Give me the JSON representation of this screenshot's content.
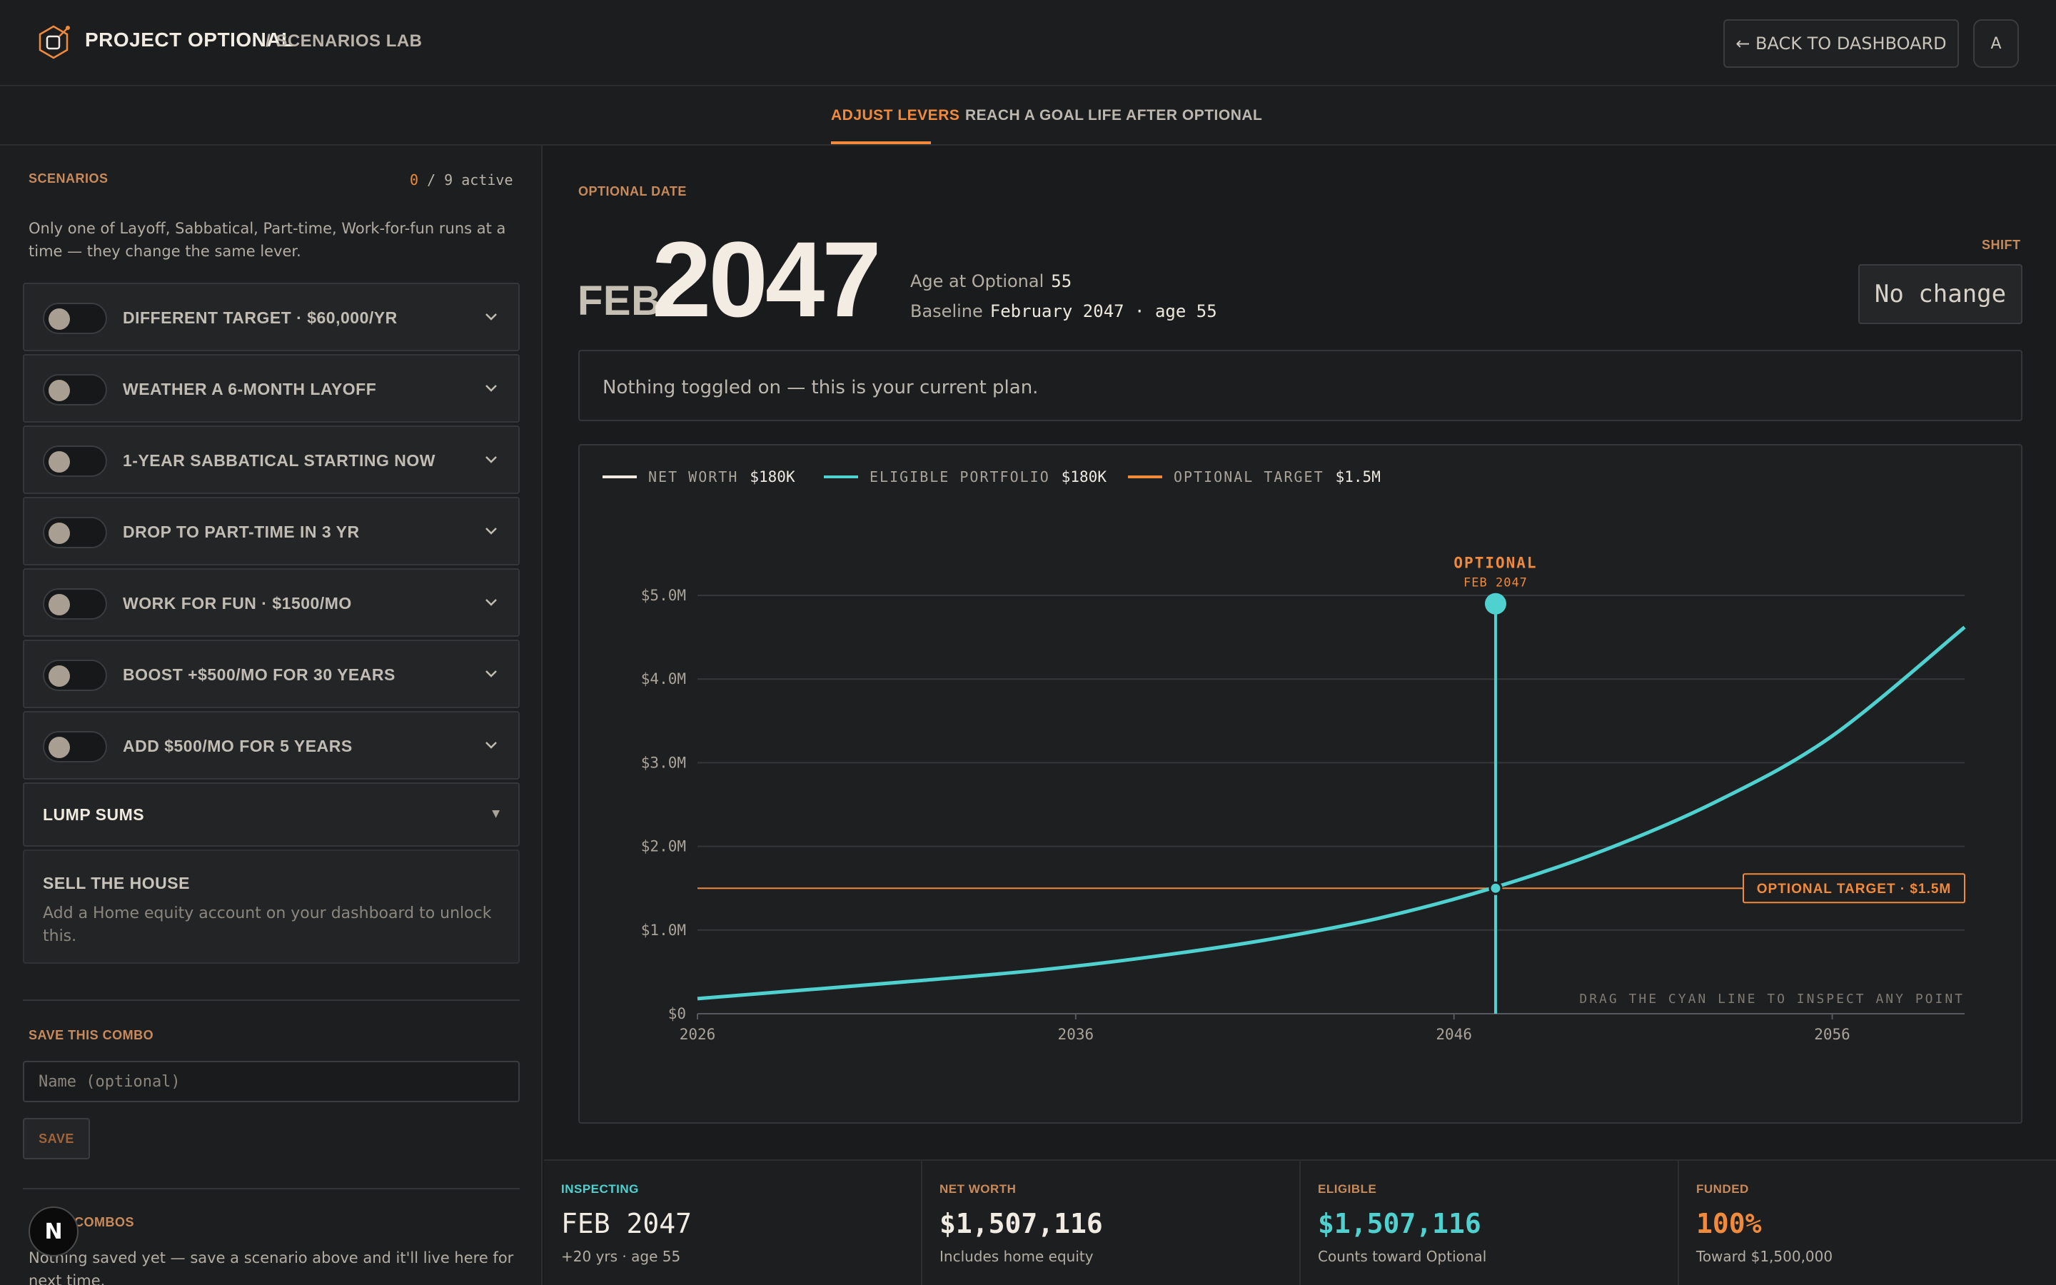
{
  "header": {
    "brand": "PROJECT OPTIONAL",
    "section": "/ SCENARIOS LAB",
    "back_button": "← BACK TO DASHBOARD",
    "avatar_initial": "A"
  },
  "tabs": [
    {
      "label": "ADJUST LEVERS",
      "active": true
    },
    {
      "label": "REACH A GOAL",
      "active": false
    },
    {
      "label": "LIFE AFTER OPTIONAL",
      "active": false
    }
  ],
  "sidebar": {
    "scenarios_label": "SCENARIOS",
    "active_num": "0",
    "active_rest": " / 9 active",
    "note": "Only one of Layoff, Sabbatical, Part-time, Work-for-fun runs at a time — they change the same lever.",
    "items": [
      {
        "label": "DIFFERENT TARGET · $60,000/YR",
        "on": false
      },
      {
        "label": "WEATHER A 6-MONTH LAYOFF",
        "on": false
      },
      {
        "label": "1-YEAR SABBATICAL STARTING NOW",
        "on": false
      },
      {
        "label": "DROP TO PART-TIME IN 3 YR",
        "on": false
      },
      {
        "label": "WORK FOR FUN · $1500/MO",
        "on": false
      },
      {
        "label": "BOOST +$500/MO FOR 30 YEARS",
        "on": false
      },
      {
        "label": "ADD $500/MO FOR 5 YEARS",
        "on": false
      }
    ],
    "lump_sums": "LUMP SUMS",
    "house_title": "SELL THE HOUSE",
    "house_note": "Add a Home equity account on your dashboard to unlock this.",
    "save_label": "SAVE THIS COMBO",
    "name_placeholder": "Name (optional)",
    "save_button": "SAVE",
    "combos_label": "COMBOS",
    "combos_note": "Nothing saved yet — save a scenario above and it'll live here for next time.",
    "badge": "N"
  },
  "main": {
    "optional_date_label": "OPTIONAL DATE",
    "month": "FEB",
    "year": "2047",
    "age_label": "Age at Optional",
    "age_value": "55",
    "baseline_label": "Baseline",
    "baseline_value": "February 2047 · age 55",
    "shift_label": "SHIFT",
    "shift_value": "No change",
    "current_plan": "Nothing toggled on — this is your current plan."
  },
  "legend": [
    {
      "label": "NET WORTH",
      "value": "$180K",
      "color": "#efe9df"
    },
    {
      "label": "ELIGIBLE PORTFOLIO",
      "value": "$180K",
      "color": "#4fd1cf"
    },
    {
      "label": "OPTIONAL TARGET",
      "value": "$1.5M",
      "color": "#f08a3c"
    }
  ],
  "chart_data": {
    "type": "line",
    "x_range": [
      2026,
      2059.5
    ],
    "ylim": [
      0,
      5000000
    ],
    "y_ticks": [
      {
        "value": 0,
        "label": "$0"
      },
      {
        "value": 1000000,
        "label": "$1.0M"
      },
      {
        "value": 2000000,
        "label": "$2.0M"
      },
      {
        "value": 3000000,
        "label": "$3.0M"
      },
      {
        "value": 4000000,
        "label": "$4.0M"
      },
      {
        "value": 5000000,
        "label": "$5.0M"
      }
    ],
    "x_ticks": [
      {
        "value": 2026,
        "label": "2026"
      },
      {
        "value": 2036,
        "label": "2036"
      },
      {
        "value": 2046,
        "label": "2046"
      },
      {
        "value": 2056,
        "label": "2056"
      }
    ],
    "series": [
      {
        "name": "ELIGIBLE PORTFOLIO",
        "color": "#4fd1cf",
        "x": [
          2026,
          2029,
          2032,
          2035,
          2038,
          2041,
          2044,
          2047,
          2050,
          2053,
          2056,
          2059.5
        ],
        "y": [
          180000,
          290000,
          400000,
          520000,
          680000,
          880000,
          1140000,
          1500000,
          1960000,
          2550000,
          3320000,
          4620000
        ]
      }
    ],
    "target": {
      "value": 1500000,
      "label": "OPTIONAL TARGET · $1.5M",
      "color": "#f08a3c"
    },
    "marker": {
      "x": 2047.1,
      "y": 1500000,
      "title": "OPTIONAL",
      "subtitle": "FEB 2047",
      "top_value": 4900000
    },
    "hint": "DRAG THE CYAN LINE TO INSPECT ANY POINT"
  },
  "stats": [
    {
      "label": "INSPECTING",
      "value": "FEB 2047",
      "sub": "+20 yrs · age 55",
      "label_color": "#4fd1cf",
      "value_color": "#f1ece3"
    },
    {
      "label": "NET WORTH",
      "value": "$1,507,116",
      "sub": "Includes home equity",
      "label_color": "#c88a5a",
      "value_color": "#f1ece3"
    },
    {
      "label": "ELIGIBLE",
      "value": "$1,507,116",
      "sub": "Counts toward Optional",
      "label_color": "#c88a5a",
      "value_color": "#4fd1cf"
    },
    {
      "label": "FUNDED",
      "value": "100%",
      "sub": "Toward $1,500,000",
      "label_color": "#c88a5a",
      "value_color": "#f08a3c"
    }
  ]
}
